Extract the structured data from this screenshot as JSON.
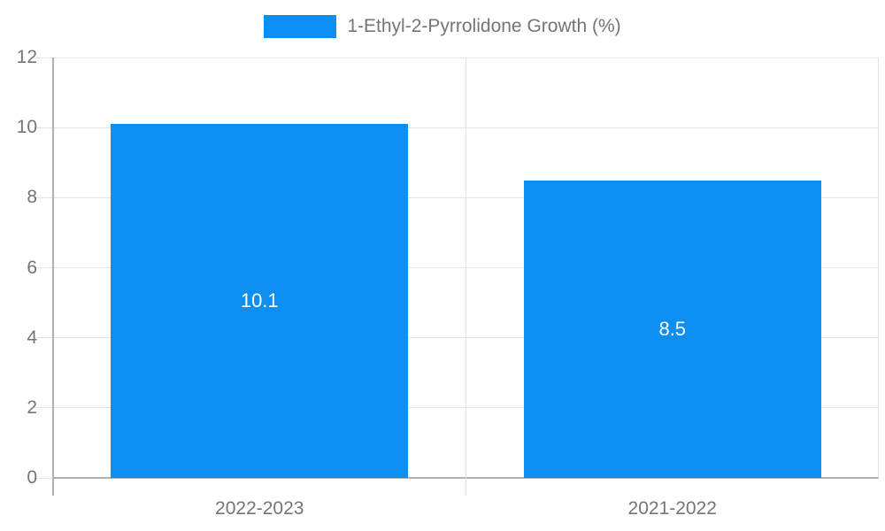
{
  "chart_data": {
    "type": "bar",
    "title": "",
    "legend": "1-Ethyl-2-Pyrrolidone Growth (%)",
    "legend_position": "top",
    "categories": [
      "2022-2023",
      "2021-2022"
    ],
    "values": [
      10.1,
      8.5
    ],
    "value_labels": [
      "10.1",
      "8.5"
    ],
    "xlabel": "",
    "ylabel": "",
    "ylim": [
      0,
      12
    ],
    "yticks": [
      0,
      2,
      4,
      6,
      8,
      10,
      12
    ],
    "ytick_labels": [
      "0",
      "2",
      "4",
      "6",
      "8",
      "10",
      "12"
    ],
    "grid": true,
    "colors": {
      "bar": "#0d8ff2",
      "grid": "#e3e3e3",
      "axis": "#b0b0b0",
      "text": "#757575",
      "value_label": "#ffffff",
      "background": "#ffffff"
    }
  }
}
